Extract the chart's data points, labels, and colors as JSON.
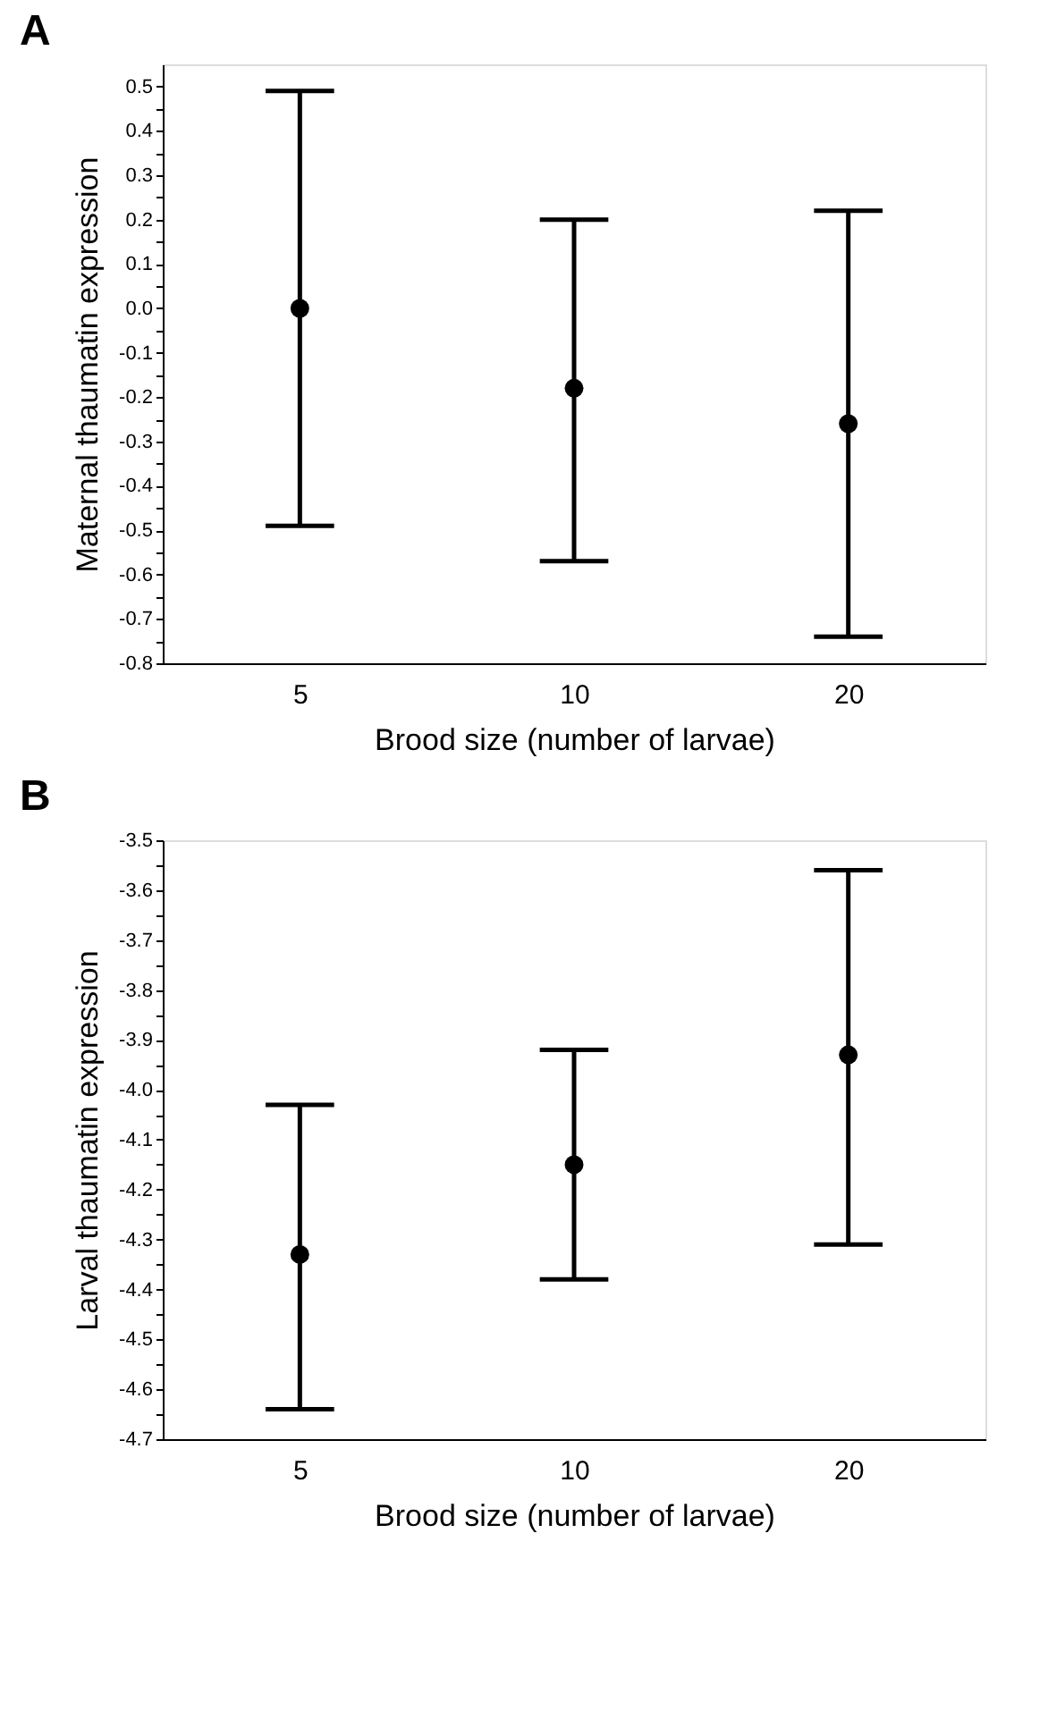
{
  "chart_data": [
    {
      "type": "scatter",
      "title": "A",
      "xlabel": "Brood size (number of larvae)",
      "ylabel": "Maternal thaumatin expression",
      "categories": [
        "5",
        "10",
        "20"
      ],
      "color": "#000000",
      "marker": "circle",
      "grid": false,
      "values": [
        0.0,
        -0.18,
        -0.26
      ],
      "errors": [
        [
          -0.49,
          0.49
        ],
        [
          -0.57,
          0.2
        ],
        [
          -0.74,
          0.22
        ]
      ],
      "ylim": [
        -0.8,
        0.55
      ],
      "yticks": [
        {
          "value": -0.8,
          "label": "-0.8"
        },
        {
          "value": -0.75,
          "label": null
        },
        {
          "value": -0.7,
          "label": "-0.7"
        },
        {
          "value": -0.65,
          "label": null
        },
        {
          "value": -0.6,
          "label": "-0.6"
        },
        {
          "value": -0.55,
          "label": null
        },
        {
          "value": -0.5,
          "label": "-0.5"
        },
        {
          "value": -0.45,
          "label": null
        },
        {
          "value": -0.4,
          "label": "-0.4"
        },
        {
          "value": -0.35,
          "label": null
        },
        {
          "value": -0.3,
          "label": "-0.3"
        },
        {
          "value": -0.25,
          "label": null
        },
        {
          "value": -0.2,
          "label": "-0.2"
        },
        {
          "value": -0.15,
          "label": null
        },
        {
          "value": -0.1,
          "label": "-0.1"
        },
        {
          "value": -0.05,
          "label": null
        },
        {
          "value": 0.0,
          "label": "0.0"
        },
        {
          "value": 0.05,
          "label": null
        },
        {
          "value": 0.1,
          "label": "0.1"
        },
        {
          "value": 0.15,
          "label": null
        },
        {
          "value": 0.2,
          "label": "0.2"
        },
        {
          "value": 0.25,
          "label": null
        },
        {
          "value": 0.3,
          "label": "0.3"
        },
        {
          "value": 0.35,
          "label": null
        },
        {
          "value": 0.4,
          "label": "0.4"
        },
        {
          "value": 0.45,
          "label": null
        },
        {
          "value": 0.5,
          "label": "0.5"
        }
      ]
    },
    {
      "type": "scatter",
      "title": "B",
      "xlabel": "Brood size (number of larvae)",
      "ylabel": "Larval thaumatin expression",
      "categories": [
        "5",
        "10",
        "20"
      ],
      "color": "#000000",
      "marker": "circle",
      "grid": false,
      "values": [
        -4.33,
        -4.15,
        -3.93
      ],
      "errors": [
        [
          -4.64,
          -4.03
        ],
        [
          -4.38,
          -3.92
        ],
        [
          -4.31,
          -3.56
        ]
      ],
      "ylim": [
        -4.7,
        -3.5
      ],
      "yticks": [
        {
          "value": -4.7,
          "label": "-4.7"
        },
        {
          "value": -4.65,
          "label": null
        },
        {
          "value": -4.6,
          "label": "-4.6"
        },
        {
          "value": -4.55,
          "label": null
        },
        {
          "value": -4.5,
          "label": "-4.5"
        },
        {
          "value": -4.45,
          "label": null
        },
        {
          "value": -4.4,
          "label": "-4.4"
        },
        {
          "value": -4.35,
          "label": null
        },
        {
          "value": -4.3,
          "label": "-4.3"
        },
        {
          "value": -4.25,
          "label": null
        },
        {
          "value": -4.2,
          "label": "-4.2"
        },
        {
          "value": -4.15,
          "label": null
        },
        {
          "value": -4.1,
          "label": "-4.1"
        },
        {
          "value": -4.05,
          "label": null
        },
        {
          "value": -4.0,
          "label": "-4.0"
        },
        {
          "value": -3.95,
          "label": null
        },
        {
          "value": -3.9,
          "label": "-3.9"
        },
        {
          "value": -3.85,
          "label": null
        },
        {
          "value": -3.8,
          "label": "-3.8"
        },
        {
          "value": -3.75,
          "label": null
        },
        {
          "value": -3.7,
          "label": "-3.7"
        },
        {
          "value": -3.65,
          "label": null
        },
        {
          "value": -3.6,
          "label": "-3.6"
        },
        {
          "value": -3.55,
          "label": null
        },
        {
          "value": -3.5,
          "label": "-3.5"
        }
      ]
    }
  ]
}
